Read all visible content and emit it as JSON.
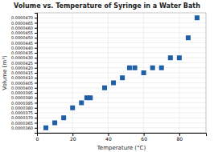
{
  "chart_data": {
    "type": "scatter",
    "title": "Volume vs. Temperature of Syringe in a Water Bath",
    "xlabel": "Temperature (°C)",
    "ylabel": "Volume (m³)",
    "x": [
      5,
      10,
      15,
      20,
      25,
      28,
      30,
      38,
      43,
      48,
      52,
      55,
      60,
      65,
      70,
      75,
      80,
      85,
      90
    ],
    "values": [
      3.6e-05,
      3.65e-05,
      3.7e-05,
      3.8e-05,
      3.85e-05,
      3.9e-05,
      3.9e-05,
      4e-05,
      4.05e-05,
      4.1e-05,
      4.2e-05,
      4.2e-05,
      4.15e-05,
      4.2e-05,
      4.2e-05,
      4.3e-05,
      4.3e-05,
      4.5e-05,
      4.7e-05
    ],
    "color": "#1f5fa6",
    "marker": "square",
    "xlim": [
      0,
      95
    ],
    "ylim": [
      3.55e-05,
      4.75e-05
    ],
    "xticks": [
      0,
      20,
      40,
      60,
      80
    ],
    "yticks": [
      {
        "value": 3.6e-05,
        "label": "0.0000360"
      },
      {
        "value": 3.65e-05,
        "label": "0.0000365"
      },
      {
        "value": 3.7e-05,
        "label": "0.0000370"
      },
      {
        "value": 3.75e-05,
        "label": "0.0000375"
      },
      {
        "value": 3.8e-05,
        "label": "0.0000380"
      },
      {
        "value": 3.85e-05,
        "label": "0.0000385"
      },
      {
        "value": 3.9e-05,
        "label": "0.0000390"
      },
      {
        "value": 3.95e-05,
        "label": "0.0000395"
      },
      {
        "value": 4e-05,
        "label": "0.0000400"
      },
      {
        "value": 4.05e-05,
        "label": "0.0000405"
      },
      {
        "value": 4.1e-05,
        "label": "0.0000410"
      },
      {
        "value": 4.15e-05,
        "label": "0.0000415"
      },
      {
        "value": 4.2e-05,
        "label": "0.0000420"
      },
      {
        "value": 4.25e-05,
        "label": "0.0000425"
      },
      {
        "value": 4.3e-05,
        "label": "0.0000430"
      },
      {
        "value": 4.35e-05,
        "label": "0.0000435"
      },
      {
        "value": 4.4e-05,
        "label": "0.0000440"
      },
      {
        "value": 4.45e-05,
        "label": "0.0000445"
      },
      {
        "value": 4.5e-05,
        "label": "0.0000450"
      },
      {
        "value": 4.55e-05,
        "label": "0.0000455"
      },
      {
        "value": 4.6e-05,
        "label": "0.0000460"
      },
      {
        "value": 4.65e-05,
        "label": "0.0000465"
      },
      {
        "value": 4.7e-05,
        "label": "0.0000470"
      }
    ],
    "grid": true
  }
}
